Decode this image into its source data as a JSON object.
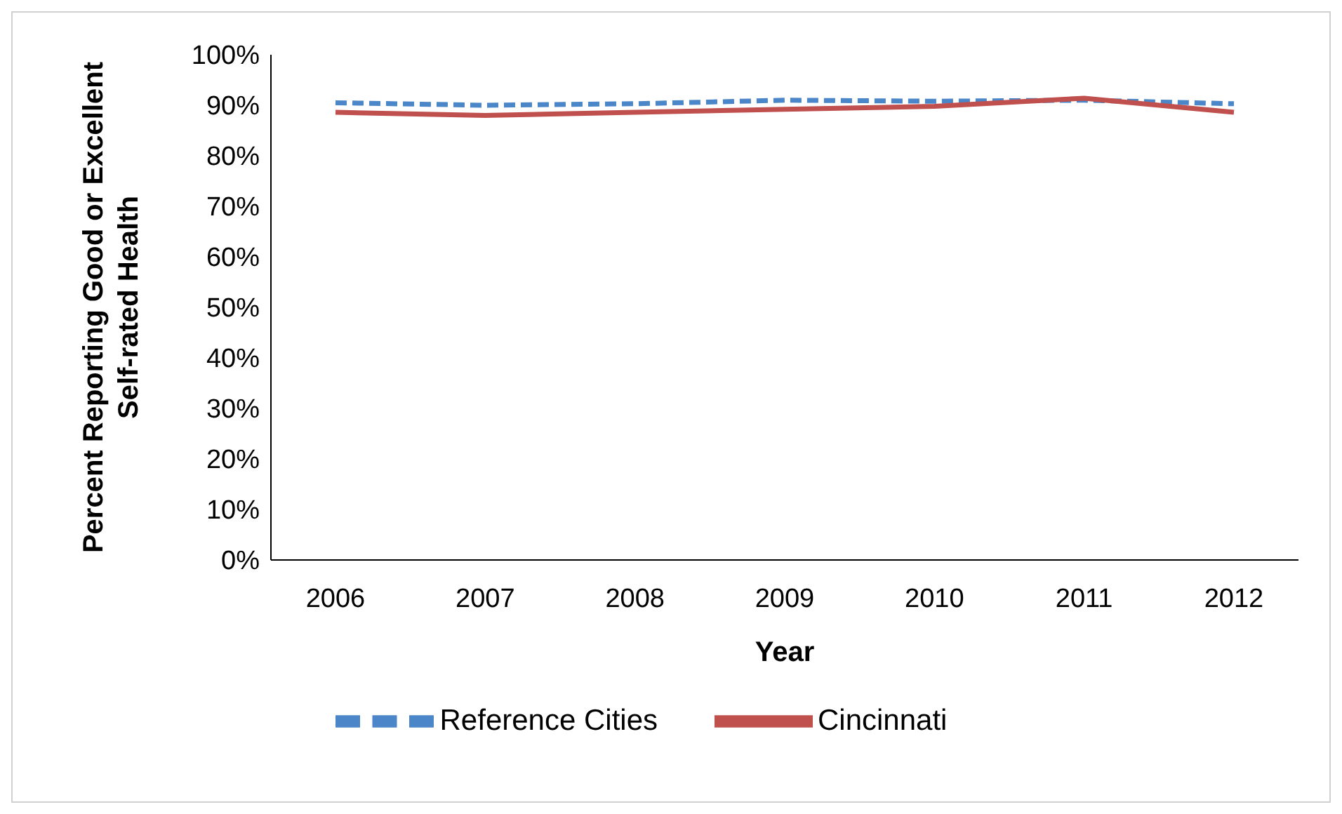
{
  "chart_data": {
    "type": "line",
    "xlabel": "Year",
    "ylabel": "Percent Reporting Good or Excellent Self-rated Health",
    "categories": [
      "2006",
      "2007",
      "2008",
      "2009",
      "2010",
      "2011",
      "2012"
    ],
    "series": [
      {
        "name": "Reference Cities",
        "color": "#4a86c8",
        "line_style": "dashed",
        "values": [
          90.5,
          90,
          90.3,
          91,
          90.8,
          91,
          90.3
        ]
      },
      {
        "name": "Cincinnati",
        "color": "#c0504d",
        "line_style": "solid",
        "values": [
          88.6,
          88,
          88.6,
          89.2,
          89.8,
          91.4,
          88.6
        ]
      }
    ],
    "ylim": [
      0,
      100
    ],
    "yticks": [
      {
        "value": 0,
        "label": "0%"
      },
      {
        "value": 10,
        "label": "10%"
      },
      {
        "value": 20,
        "label": "20%"
      },
      {
        "value": 30,
        "label": "30%"
      },
      {
        "value": 40,
        "label": "40%"
      },
      {
        "value": 50,
        "label": "50%"
      },
      {
        "value": 60,
        "label": "60%"
      },
      {
        "value": 70,
        "label": "70%"
      },
      {
        "value": 80,
        "label": "80%"
      },
      {
        "value": 90,
        "label": "90%"
      },
      {
        "value": 100,
        "label": "100%"
      }
    ],
    "grid": false,
    "legend": "bottom",
    "marker": "none"
  }
}
